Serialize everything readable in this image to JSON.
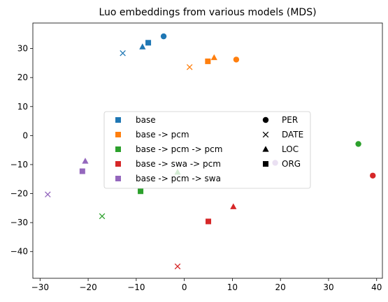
{
  "chart_data": {
    "type": "scatter",
    "title": "Luo embeddings from various models (MDS)",
    "xlabel": "",
    "ylabel": "",
    "xlim": [
      -31.5,
      41.2
    ],
    "ylim": [
      -49.2,
      38.8
    ],
    "xticks": [
      -30,
      -20,
      -10,
      0,
      10,
      20,
      30,
      40
    ],
    "yticks": [
      -40,
      -30,
      -20,
      -10,
      0,
      10,
      20,
      30
    ],
    "grid": false,
    "legend_placement": "center",
    "models": [
      {
        "name": "base",
        "color": "#1f77b4"
      },
      {
        "name": "base -> pcm",
        "color": "#ff7f0e"
      },
      {
        "name": "base -> pcm -> pcm",
        "color": "#2ca02c"
      },
      {
        "name": "base -> swa -> pcm",
        "color": "#d62728"
      },
      {
        "name": "base -> pcm -> swa",
        "color": "#9467bd"
      }
    ],
    "entity_types": [
      {
        "name": "PER",
        "marker": "circle"
      },
      {
        "name": "DATE",
        "marker": "x"
      },
      {
        "name": "LOC",
        "marker": "triangle"
      },
      {
        "name": "ORG",
        "marker": "square"
      }
    ],
    "points": [
      {
        "model": "base",
        "entity": "PER",
        "x": -4.3,
        "y": 34.2
      },
      {
        "model": "base",
        "entity": "DATE",
        "x": -12.8,
        "y": 28.4
      },
      {
        "model": "base",
        "entity": "LOC",
        "x": -8.7,
        "y": 30.6
      },
      {
        "model": "base",
        "entity": "ORG",
        "x": -7.5,
        "y": 32.0
      },
      {
        "model": "base -> pcm",
        "entity": "PER",
        "x": 10.8,
        "y": 26.2
      },
      {
        "model": "base -> pcm",
        "entity": "DATE",
        "x": 1.1,
        "y": 23.6
      },
      {
        "model": "base -> pcm",
        "entity": "LOC",
        "x": 6.2,
        "y": 26.9
      },
      {
        "model": "base -> pcm",
        "entity": "ORG",
        "x": 4.9,
        "y": 25.6
      },
      {
        "model": "base -> pcm -> pcm",
        "entity": "PER",
        "x": 36.2,
        "y": -2.9
      },
      {
        "model": "base -> pcm -> pcm",
        "entity": "DATE",
        "x": -17.1,
        "y": -27.8
      },
      {
        "model": "base -> pcm -> pcm",
        "entity": "LOC",
        "x": -1.4,
        "y": -12.6
      },
      {
        "model": "base -> pcm -> pcm",
        "entity": "ORG",
        "x": -9.1,
        "y": -19.2
      },
      {
        "model": "base -> swa -> pcm",
        "entity": "PER",
        "x": 39.2,
        "y": -13.8
      },
      {
        "model": "base -> swa -> pcm",
        "entity": "DATE",
        "x": -1.4,
        "y": -45.1
      },
      {
        "model": "base -> swa -> pcm",
        "entity": "LOC",
        "x": 10.2,
        "y": -24.5
      },
      {
        "model": "base -> swa -> pcm",
        "entity": "ORG",
        "x": 5.0,
        "y": -29.6
      },
      {
        "model": "base -> pcm -> swa",
        "entity": "PER",
        "x": 18.9,
        "y": -9.4
      },
      {
        "model": "base -> pcm -> swa",
        "entity": "DATE",
        "x": -28.4,
        "y": -20.3
      },
      {
        "model": "base -> pcm -> swa",
        "entity": "LOC",
        "x": -20.6,
        "y": -8.8
      },
      {
        "model": "base -> pcm -> swa",
        "entity": "ORG",
        "x": -21.2,
        "y": -12.3
      }
    ]
  }
}
